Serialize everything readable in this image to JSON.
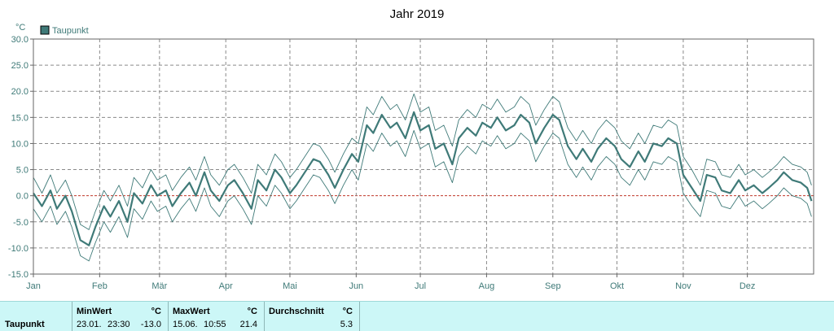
{
  "chart_data": {
    "type": "line",
    "title": "Jahr 2019",
    "unit_label": "°C",
    "legend": {
      "entries": [
        "Taupunkt"
      ],
      "placement": "top-left",
      "color": "#3f7a78"
    },
    "ylim": [
      -15,
      30
    ],
    "y_ticks": [
      "30.0",
      "25.0",
      "20.0",
      "15.0",
      "10.0",
      "5.0",
      "0.0",
      "-5.0",
      "-10.0",
      "-15.0"
    ],
    "x_ticks": [
      "Jan",
      "Feb",
      "Mär",
      "Apr",
      "Mai",
      "Jun",
      "Jul",
      "Aug",
      "Sep",
      "Okt",
      "Nov",
      "Dez"
    ],
    "grid": true,
    "zero_line_color": "#c0392b",
    "x_unit": "day_of_year",
    "series": [
      {
        "name": "Taupunkt",
        "role": "mean",
        "color": "#3f7a78",
        "x": [
          1,
          5,
          9,
          12,
          16,
          19,
          23,
          27,
          30,
          34,
          37,
          41,
          45,
          48,
          52,
          56,
          59,
          63,
          66,
          70,
          74,
          77,
          81,
          84,
          88,
          92,
          95,
          99,
          103,
          106,
          110,
          114,
          117,
          121,
          124,
          128,
          132,
          135,
          139,
          142,
          146,
          150,
          153,
          157,
          160,
          164,
          168,
          171,
          175,
          179,
          182,
          186,
          189,
          193,
          197,
          200,
          204,
          208,
          211,
          215,
          218,
          222,
          226,
          229,
          233,
          236,
          240,
          244,
          247,
          251,
          255,
          258,
          262,
          265,
          269,
          273,
          276,
          280,
          284,
          287,
          291,
          295,
          298,
          302,
          305,
          309,
          313,
          316,
          320,
          323,
          327,
          331,
          334,
          338,
          342,
          345,
          349,
          352,
          356,
          360,
          363,
          365
        ],
        "y": [
          0.5,
          -2.0,
          1.0,
          -2.5,
          0.0,
          -3.0,
          -8.5,
          -9.5,
          -6.0,
          -2.0,
          -4.0,
          -1.0,
          -5.0,
          0.5,
          -1.5,
          2.0,
          0.0,
          1.0,
          -2.0,
          0.5,
          2.5,
          0.0,
          4.5,
          1.0,
          -1.0,
          2.0,
          3.0,
          0.5,
          -2.5,
          3.0,
          1.0,
          5.0,
          3.5,
          0.5,
          2.0,
          4.5,
          7.0,
          6.5,
          4.0,
          1.5,
          5.0,
          8.0,
          6.5,
          13.5,
          12.0,
          15.5,
          13.0,
          14.0,
          11.0,
          16.0,
          12.5,
          13.5,
          9.0,
          10.0,
          6.0,
          11.0,
          13.0,
          11.5,
          14.0,
          13.0,
          15.0,
          12.5,
          13.5,
          15.5,
          14.0,
          10.0,
          13.0,
          15.5,
          14.5,
          9.5,
          7.0,
          9.0,
          6.5,
          9.0,
          11.0,
          9.5,
          7.0,
          5.5,
          8.5,
          6.5,
          10.0,
          9.5,
          11.0,
          10.0,
          4.0,
          1.5,
          -1.0,
          4.0,
          3.5,
          1.0,
          0.5,
          3.0,
          1.0,
          2.0,
          0.5,
          1.5,
          3.0,
          4.5,
          3.0,
          2.5,
          1.5,
          -1.0
        ]
      },
      {
        "name": "Taupunkt",
        "role": "max",
        "color": "#3f7a78",
        "x": [
          1,
          5,
          9,
          12,
          16,
          19,
          23,
          27,
          30,
          34,
          37,
          41,
          45,
          48,
          52,
          56,
          59,
          63,
          66,
          70,
          74,
          77,
          81,
          84,
          88,
          92,
          95,
          99,
          103,
          106,
          110,
          114,
          117,
          121,
          124,
          128,
          132,
          135,
          139,
          142,
          146,
          150,
          153,
          157,
          160,
          164,
          168,
          171,
          175,
          179,
          182,
          186,
          189,
          193,
          197,
          200,
          204,
          208,
          211,
          215,
          218,
          222,
          226,
          229,
          233,
          236,
          240,
          244,
          247,
          251,
          255,
          258,
          262,
          265,
          269,
          273,
          276,
          280,
          284,
          287,
          291,
          295,
          298,
          302,
          305,
          309,
          313,
          316,
          320,
          323,
          327,
          331,
          334,
          338,
          342,
          345,
          349,
          352,
          356,
          360,
          363,
          365
        ],
        "y": [
          3.5,
          0.5,
          4.0,
          0.5,
          3.0,
          0.0,
          -5.5,
          -6.5,
          -3.0,
          1.0,
          -1.0,
          2.0,
          -2.0,
          3.5,
          1.5,
          5.0,
          3.0,
          4.0,
          1.0,
          3.5,
          5.5,
          3.0,
          7.5,
          4.0,
          2.0,
          5.0,
          6.0,
          3.5,
          0.5,
          6.0,
          4.0,
          8.0,
          6.5,
          3.5,
          5.0,
          7.5,
          10.0,
          9.5,
          7.0,
          4.5,
          8.0,
          11.0,
          10.0,
          17.0,
          15.5,
          19.0,
          16.5,
          17.5,
          14.5,
          19.5,
          16.0,
          17.0,
          12.5,
          13.5,
          9.5,
          14.5,
          16.5,
          15.0,
          17.5,
          16.5,
          18.5,
          16.0,
          17.0,
          19.0,
          17.5,
          13.5,
          16.5,
          19.0,
          18.0,
          13.0,
          10.5,
          12.5,
          10.0,
          12.5,
          14.5,
          13.0,
          10.5,
          9.0,
          12.0,
          10.0,
          13.5,
          13.0,
          14.5,
          13.5,
          7.5,
          5.0,
          2.0,
          7.0,
          6.5,
          4.0,
          3.5,
          6.0,
          4.0,
          5.0,
          3.5,
          4.5,
          6.0,
          7.5,
          6.0,
          5.5,
          4.5,
          2.0
        ]
      },
      {
        "name": "Taupunkt",
        "role": "min",
        "color": "#3f7a78",
        "x": [
          1,
          5,
          9,
          12,
          16,
          19,
          23,
          27,
          30,
          34,
          37,
          41,
          45,
          48,
          52,
          56,
          59,
          63,
          66,
          70,
          74,
          77,
          81,
          84,
          88,
          92,
          95,
          99,
          103,
          106,
          110,
          114,
          117,
          121,
          124,
          128,
          132,
          135,
          139,
          142,
          146,
          150,
          153,
          157,
          160,
          164,
          168,
          171,
          175,
          179,
          182,
          186,
          189,
          193,
          197,
          200,
          204,
          208,
          211,
          215,
          218,
          222,
          226,
          229,
          233,
          236,
          240,
          244,
          247,
          251,
          255,
          258,
          262,
          265,
          269,
          273,
          276,
          280,
          284,
          287,
          291,
          295,
          298,
          302,
          305,
          309,
          313,
          316,
          320,
          323,
          327,
          331,
          334,
          338,
          342,
          345,
          349,
          352,
          356,
          360,
          363,
          365
        ],
        "y": [
          -2.5,
          -5.0,
          -2.0,
          -5.5,
          -3.0,
          -6.0,
          -11.5,
          -12.5,
          -9.0,
          -5.0,
          -7.0,
          -4.0,
          -8.0,
          -2.5,
          -4.5,
          -1.0,
          -3.0,
          -2.0,
          -5.0,
          -2.5,
          -0.5,
          -3.0,
          1.5,
          -2.0,
          -4.0,
          -1.0,
          0.0,
          -2.5,
          -5.5,
          0.0,
          -2.0,
          2.0,
          0.5,
          -2.5,
          -1.0,
          1.5,
          4.0,
          3.5,
          1.0,
          -1.5,
          2.0,
          5.0,
          3.0,
          10.0,
          8.5,
          12.0,
          9.5,
          10.5,
          7.5,
          12.5,
          9.0,
          10.0,
          5.5,
          6.5,
          2.5,
          7.5,
          9.5,
          8.0,
          10.5,
          9.5,
          11.5,
          9.0,
          10.0,
          12.0,
          10.5,
          6.5,
          9.5,
          12.0,
          11.0,
          6.0,
          3.5,
          5.5,
          3.0,
          5.5,
          7.5,
          6.0,
          3.5,
          2.0,
          5.0,
          3.0,
          6.5,
          6.0,
          7.5,
          6.5,
          0.5,
          -2.0,
          -4.0,
          1.0,
          0.5,
          -2.0,
          -2.5,
          0.0,
          -2.0,
          -1.0,
          -2.5,
          -1.5,
          0.0,
          1.5,
          0.0,
          -0.5,
          -1.5,
          -4.0
        ]
      }
    ]
  },
  "stats": {
    "row_label": "Taupunkt",
    "min": {
      "header": "MinWert",
      "unit": "°C",
      "date": "23.01.",
      "time": "23:30",
      "value": "-13.0"
    },
    "max": {
      "header": "MaxWert",
      "unit": "°C",
      "date": "15.06.",
      "time": "10:55",
      "value": "21.4"
    },
    "avg": {
      "header": "Durchschnitt",
      "unit": "°C",
      "value": "5.3"
    }
  }
}
